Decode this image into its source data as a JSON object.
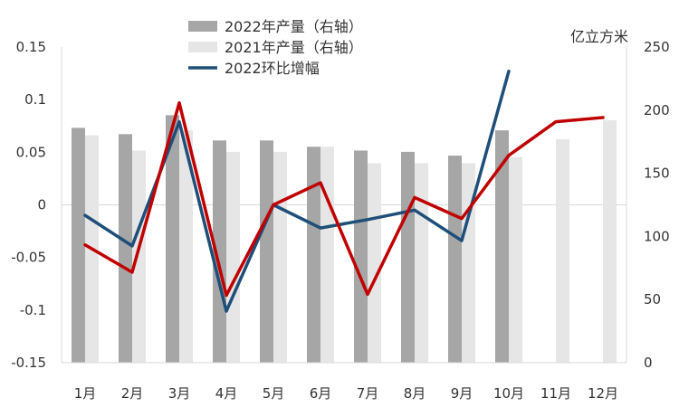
{
  "chart_data": {
    "type": "bar",
    "categories": [
      "1月",
      "2月",
      "3月",
      "4月",
      "5月",
      "6月",
      "7月",
      "8月",
      "9月",
      "10月",
      "11月",
      "12月"
    ],
    "left_axis": {
      "ticks": [
        "0.15",
        "0.1",
        "0.05",
        "0",
        "-0.05",
        "-0.1",
        "-0.15"
      ],
      "range": [
        -0.15,
        0.15
      ]
    },
    "right_axis": {
      "unit": "亿立方米",
      "ticks": [
        "250",
        "200",
        "150",
        "100",
        "50",
        "0"
      ],
      "range": [
        0,
        250
      ]
    },
    "series": [
      {
        "name": "2022年产量（右轴）",
        "type": "bar",
        "axis": "right",
        "color": "#a6a6a6",
        "values": [
          186,
          181,
          196,
          176,
          176,
          171,
          168,
          167,
          164,
          184,
          null,
          null
        ]
      },
      {
        "name": "2021年产量（右轴）",
        "type": "bar",
        "axis": "right",
        "color": "#e6e6e6",
        "values": [
          180,
          168,
          184,
          167,
          167,
          171,
          158,
          158,
          158,
          163,
          177,
          192
        ]
      },
      {
        "name": "2022环比增幅",
        "type": "line",
        "axis": "left",
        "color": "#1f4e79",
        "values": [
          -0.01,
          -0.039,
          0.079,
          -0.101,
          0.0,
          -0.022,
          -0.014,
          -0.005,
          -0.034,
          0.127,
          null,
          null
        ]
      },
      {
        "type": "line",
        "axis": "left",
        "color": "#c00000",
        "in_legend": false,
        "values": [
          -0.038,
          -0.064,
          0.097,
          -0.086,
          0.0,
          0.021,
          -0.085,
          0.007,
          -0.013,
          0.047,
          0.079,
          0.083
        ]
      }
    ],
    "legend_position": "top-center"
  }
}
